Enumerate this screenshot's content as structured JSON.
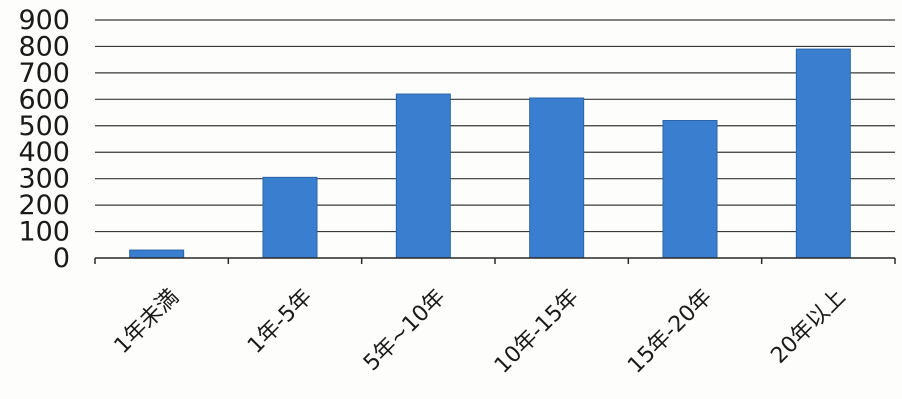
{
  "chart_data": {
    "type": "bar",
    "title": "",
    "xlabel": "",
    "ylabel": "",
    "categories": [
      "1年未満",
      "1年-5年",
      "5年~10年",
      "10年-15年",
      "15年-20年",
      "20年以上"
    ],
    "values": [
      30,
      305,
      620,
      605,
      520,
      790
    ],
    "ylim": [
      0,
      900
    ],
    "yticks": [
      0,
      100,
      200,
      300,
      400,
      500,
      600,
      700,
      800,
      900
    ],
    "grid": true,
    "legend": "none",
    "colors": {
      "bar": "#3a7fcf",
      "bar_edge": "#2a63a8",
      "grid": "#3a3a3a",
      "axis": "#2a2a2a",
      "text": "#1a1a1a"
    }
  }
}
